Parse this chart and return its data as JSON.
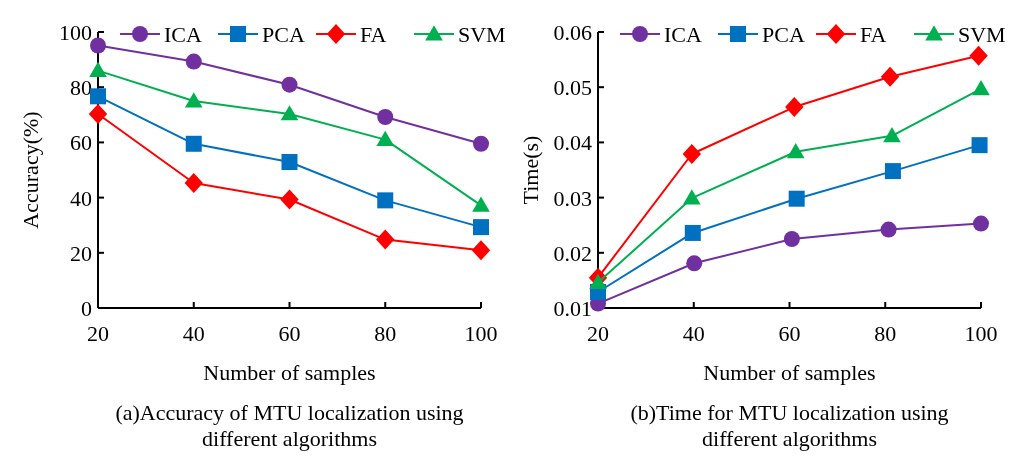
{
  "chart_data": [
    {
      "type": "line",
      "xlabel": "Number of samples",
      "ylabel": "Accuracy(%)",
      "xlim": [
        20,
        100
      ],
      "xticks": [
        20,
        40,
        60,
        80,
        100
      ],
      "ylim": [
        0,
        100
      ],
      "yticks": [
        0,
        20,
        40,
        60,
        80,
        100
      ],
      "legend": "top",
      "line_style": "solid",
      "annotations": [
        "(a)Accuracy of MTU localization using different algorithms"
      ],
      "series": [
        {
          "name": "ICA",
          "color": "#7030a0",
          "marker": "circle",
          "x": [
            20,
            40,
            60,
            80,
            100
          ],
          "values": [
            95.1,
            89.3,
            80.9,
            69.2,
            59.5
          ]
        },
        {
          "name": "PCA",
          "color": "#0070c0",
          "marker": "square",
          "x": [
            20,
            40,
            60,
            80,
            100
          ],
          "values": [
            76.7,
            59.5,
            52.9,
            39,
            29.3
          ]
        },
        {
          "name": "FA",
          "color": "#ff0000",
          "marker": "diamond",
          "x": [
            20,
            40,
            60,
            80,
            100
          ],
          "values": [
            70.3,
            45.3,
            39.3,
            24.8,
            20.9
          ]
        },
        {
          "name": "SVM",
          "color": "#00b050",
          "marker": "triangle",
          "x": [
            20,
            40,
            60,
            80,
            100
          ],
          "values": [
            86,
            75,
            70.3,
            61,
            37.2
          ]
        }
      ]
    },
    {
      "type": "line",
      "xlabel": "Number of samples",
      "ylabel": "Time(s)",
      "xlim": [
        20,
        100
      ],
      "xticks": [
        20,
        40,
        60,
        80,
        100
      ],
      "ylim": [
        0.01,
        0.06
      ],
      "yticks": [
        {
          "value": 0.01,
          "label": "0.01"
        },
        {
          "value": 0.02,
          "label": "0.02"
        },
        {
          "value": 0.03,
          "label": "0.03"
        },
        {
          "value": 0.04,
          "label": "0.04"
        },
        {
          "value": 0.05,
          "label": "0.05"
        },
        {
          "value": 0.06,
          "label": "0.06"
        }
      ],
      "legend": "top",
      "line_style": "solid",
      "annotations": [
        "(b)Time for MTU localization using different algorithms"
      ],
      "series": [
        {
          "name": "ICA",
          "color": "#7030a0",
          "marker": "circle",
          "x": [
            20,
            40.1,
            60.5,
            80.7,
            100
          ],
          "values": [
            0.0108,
            0.0181,
            0.0225,
            0.0242,
            0.0253
          ]
        },
        {
          "name": "PCA",
          "color": "#0070c0",
          "marker": "square",
          "x": [
            20,
            39.8,
            61.5,
            81.6,
            99.7
          ],
          "values": [
            0.0129,
            0.0236,
            0.0298,
            0.0348,
            0.0395
          ]
        },
        {
          "name": "FA",
          "color": "#ff0000",
          "marker": "diamond",
          "x": [
            20,
            39.6,
            61,
            81,
            99.5
          ],
          "values": [
            0.0155,
            0.0379,
            0.0464,
            0.0519,
            0.0557
          ]
        },
        {
          "name": "SVM",
          "color": "#00b050",
          "marker": "triangle",
          "x": [
            20,
            39.6,
            61.3,
            81.4,
            100
          ],
          "values": [
            0.0146,
            0.0299,
            0.0383,
            0.0412,
            0.0497
          ]
        }
      ]
    }
  ]
}
